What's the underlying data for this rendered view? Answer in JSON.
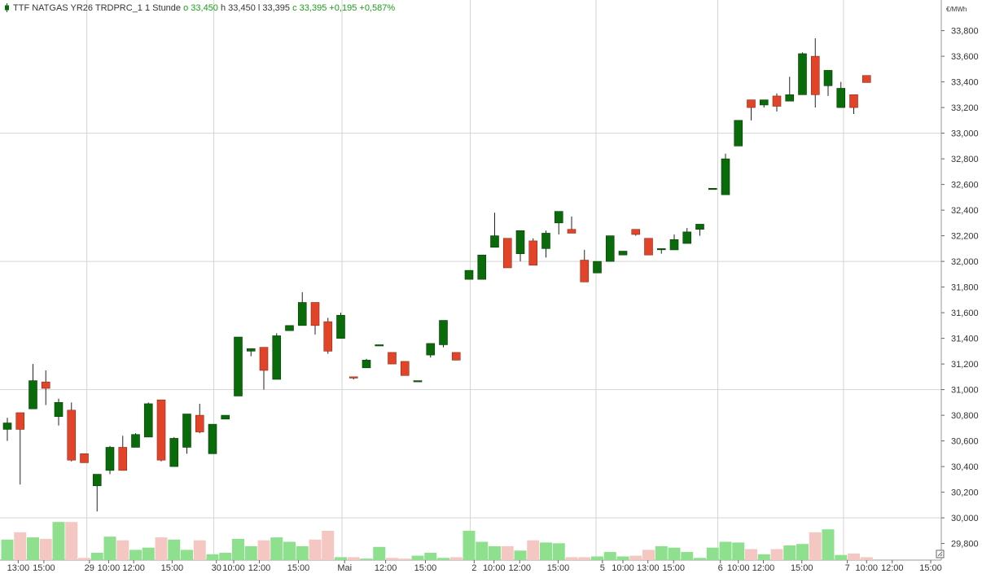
{
  "header": {
    "title": "TTF NATGAS YR26 TRDPRC_1",
    "interval": "1 Stunde",
    "open": "o 33,450",
    "high": "h 33,450",
    "low": "l 33,395",
    "close": "c 33,395",
    "change": "+0,195",
    "change_pct": "+0,587%"
  },
  "unit_label": "€/MWh",
  "colors": {
    "up": "#0a6b0a",
    "down": "#e2442a",
    "vol_up": "#8ee08e",
    "vol_down": "#f5c7c2",
    "grid": "#d4d4d4",
    "axis_text": "#333333"
  },
  "chart_data": {
    "type": "candlestick",
    "ylim": [
      29.7,
      33.9
    ],
    "y_ticks": [
      {
        "v": 29.8,
        "label": "29,800"
      },
      {
        "v": 30.0,
        "label": "30,000"
      },
      {
        "v": 30.2,
        "label": "30,200"
      },
      {
        "v": 30.4,
        "label": "30,400"
      },
      {
        "v": 30.6,
        "label": "30,600"
      },
      {
        "v": 30.8,
        "label": "30,800"
      },
      {
        "v": 31.0,
        "label": "31,000"
      },
      {
        "v": 31.2,
        "label": "31,200"
      },
      {
        "v": 31.4,
        "label": "31,400"
      },
      {
        "v": 31.6,
        "label": "31,600"
      },
      {
        "v": 31.8,
        "label": "31,800"
      },
      {
        "v": 32.0,
        "label": "32,000"
      },
      {
        "v": 32.2,
        "label": "32,200"
      },
      {
        "v": 32.4,
        "label": "32,400"
      },
      {
        "v": 32.6,
        "label": "32,600"
      },
      {
        "v": 32.8,
        "label": "32,800"
      },
      {
        "v": 33.0,
        "label": "33,000"
      },
      {
        "v": 33.2,
        "label": "33,200"
      },
      {
        "v": 33.4,
        "label": "33,400"
      },
      {
        "v": 33.6,
        "label": "33,600"
      },
      {
        "v": 33.8,
        "label": "33,800"
      }
    ],
    "h_gridlines": [
      30.0,
      31.0,
      32.0,
      33.0
    ],
    "x_ticks": [
      {
        "i": 0.85,
        "label": "13:00"
      },
      {
        "i": 2.85,
        "label": "15:00"
      },
      {
        "i": 6.4,
        "label": "29"
      },
      {
        "i": 7.9,
        "label": "10:00"
      },
      {
        "i": 9.85,
        "label": "12:00"
      },
      {
        "i": 12.85,
        "label": "15:00"
      },
      {
        "i": 16.3,
        "label": "30"
      },
      {
        "i": 17.65,
        "label": "10:00"
      },
      {
        "i": 19.65,
        "label": "12:00"
      },
      {
        "i": 22.7,
        "label": "15:00"
      },
      {
        "i": 26.3,
        "label": "Mai"
      },
      {
        "i": 29.5,
        "label": "12:00"
      },
      {
        "i": 32.6,
        "label": "15:00"
      },
      {
        "i": 36.4,
        "label": "2"
      },
      {
        "i": 37.95,
        "label": "10:00"
      },
      {
        "i": 39.95,
        "label": "12:00"
      },
      {
        "i": 42.95,
        "label": "15:00"
      },
      {
        "i": 46.4,
        "label": "5"
      },
      {
        "i": 48.0,
        "label": "10:00"
      },
      {
        "i": 49.95,
        "label": "13:00"
      },
      {
        "i": 51.95,
        "label": "15:00"
      },
      {
        "i": 55.6,
        "label": "6"
      },
      {
        "i": 57.0,
        "label": "10:00"
      },
      {
        "i": 58.95,
        "label": "12:00"
      },
      {
        "i": 61.95,
        "label": "15:00"
      },
      {
        "i": 65.5,
        "label": "7"
      },
      {
        "i": 67.0,
        "label": "10:00"
      },
      {
        "i": 69.0,
        "label": "12:00"
      },
      {
        "i": 72.0,
        "label": "15:00"
      }
    ],
    "v_gridlines": [
      6.2,
      16.1,
      26.1,
      36.1,
      45.9,
      55.4,
      65.2
    ],
    "volume_max": 100,
    "candles": [
      {
        "o": 30.69,
        "h": 30.78,
        "l": 30.6,
        "c": 30.74,
        "v": 28
      },
      {
        "o": 30.82,
        "h": 30.82,
        "l": 30.26,
        "c": 30.69,
        "v": 38
      },
      {
        "o": 30.85,
        "h": 31.2,
        "l": 30.85,
        "c": 31.07,
        "v": 31
      },
      {
        "o": 31.06,
        "h": 31.15,
        "l": 30.88,
        "c": 31.01,
        "v": 29
      },
      {
        "o": 30.79,
        "h": 30.93,
        "l": 30.72,
        "c": 30.9,
        "v": 52
      },
      {
        "o": 30.84,
        "h": 30.9,
        "l": 30.44,
        "c": 30.45,
        "v": 52
      },
      {
        "o": 30.5,
        "h": 30.5,
        "l": 30.43,
        "c": 30.43,
        "v": 3
      },
      {
        "o": 30.25,
        "h": 30.34,
        "l": 30.05,
        "c": 30.34,
        "v": 10
      },
      {
        "o": 30.37,
        "h": 30.56,
        "l": 30.34,
        "c": 30.55,
        "v": 32
      },
      {
        "o": 30.55,
        "h": 30.64,
        "l": 30.37,
        "c": 30.37,
        "v": 27
      },
      {
        "o": 30.55,
        "h": 30.66,
        "l": 30.55,
        "c": 30.65,
        "v": 14
      },
      {
        "o": 30.63,
        "h": 30.9,
        "l": 30.63,
        "c": 30.89,
        "v": 17
      },
      {
        "o": 30.92,
        "h": 30.92,
        "l": 30.44,
        "c": 30.45,
        "v": 31
      },
      {
        "o": 30.4,
        "h": 30.63,
        "l": 30.4,
        "c": 30.62,
        "v": 28
      },
      {
        "o": 30.55,
        "h": 30.8,
        "l": 30.5,
        "c": 30.81,
        "v": 14
      },
      {
        "o": 30.8,
        "h": 30.89,
        "l": 30.66,
        "c": 30.67,
        "v": 27
      },
      {
        "o": 30.5,
        "h": 30.73,
        "l": 30.5,
        "c": 30.73,
        "v": 8
      },
      {
        "o": 30.77,
        "h": 30.8,
        "l": 30.77,
        "c": 30.8,
        "v": 10
      },
      {
        "o": 30.95,
        "h": 31.41,
        "l": 30.95,
        "c": 31.41,
        "v": 29
      },
      {
        "o": 31.3,
        "h": 31.32,
        "l": 31.26,
        "c": 31.32,
        "v": 19
      },
      {
        "o": 31.33,
        "h": 31.33,
        "l": 31.0,
        "c": 31.15,
        "v": 27
      },
      {
        "o": 31.08,
        "h": 31.44,
        "l": 31.08,
        "c": 31.42,
        "v": 31
      },
      {
        "o": 31.46,
        "h": 31.5,
        "l": 31.46,
        "c": 31.5,
        "v": 25
      },
      {
        "o": 31.5,
        "h": 31.76,
        "l": 31.5,
        "c": 31.68,
        "v": 19
      },
      {
        "o": 31.68,
        "h": 31.68,
        "l": 31.43,
        "c": 31.5,
        "v": 28
      },
      {
        "o": 31.53,
        "h": 31.56,
        "l": 31.28,
        "c": 31.3,
        "v": 40
      },
      {
        "o": 31.4,
        "h": 31.6,
        "l": 31.4,
        "c": 31.58,
        "v": 4
      },
      {
        "o": 31.1,
        "h": 31.1,
        "l": 31.08,
        "c": 31.09,
        "v": 4
      },
      {
        "o": 31.17,
        "h": 31.24,
        "l": 31.17,
        "c": 31.23,
        "v": 2
      },
      {
        "o": 31.35,
        "h": 31.35,
        "l": 31.34,
        "c": 31.35,
        "v": 18
      },
      {
        "o": 31.29,
        "h": 31.29,
        "l": 31.2,
        "c": 31.2,
        "v": 3
      },
      {
        "o": 31.22,
        "h": 31.22,
        "l": 31.11,
        "c": 31.11,
        "v": 2
      },
      {
        "o": 31.07,
        "h": 31.07,
        "l": 31.06,
        "c": 31.07,
        "v": 6
      },
      {
        "o": 31.27,
        "h": 31.36,
        "l": 31.25,
        "c": 31.36,
        "v": 10
      },
      {
        "o": 31.35,
        "h": 31.54,
        "l": 31.33,
        "c": 31.54,
        "v": 3
      },
      {
        "o": 31.29,
        "h": 31.29,
        "l": 31.23,
        "c": 31.23,
        "v": 4
      },
      {
        "o": 31.86,
        "h": 31.93,
        "l": 31.86,
        "c": 31.93,
        "v": 40
      },
      {
        "o": 31.86,
        "h": 32.05,
        "l": 31.86,
        "c": 32.05,
        "v": 25
      },
      {
        "o": 32.11,
        "h": 32.38,
        "l": 32.11,
        "c": 32.2,
        "v": 19
      },
      {
        "o": 32.18,
        "h": 32.18,
        "l": 31.95,
        "c": 31.95,
        "v": 19
      },
      {
        "o": 32.06,
        "h": 32.24,
        "l": 32.0,
        "c": 32.24,
        "v": 13
      },
      {
        "o": 32.16,
        "h": 32.18,
        "l": 31.97,
        "c": 31.97,
        "v": 27
      },
      {
        "o": 32.1,
        "h": 32.24,
        "l": 32.03,
        "c": 32.22,
        "v": 24
      },
      {
        "o": 32.3,
        "h": 32.39,
        "l": 32.21,
        "c": 32.39,
        "v": 23
      },
      {
        "o": 32.25,
        "h": 32.35,
        "l": 32.22,
        "c": 32.22,
        "v": 4
      },
      {
        "o": 32.01,
        "h": 32.09,
        "l": 31.84,
        "c": 31.84,
        "v": 4
      },
      {
        "o": 31.91,
        "h": 32.0,
        "l": 31.91,
        "c": 32.0,
        "v": 5
      },
      {
        "o": 32.0,
        "h": 32.2,
        "l": 32.0,
        "c": 32.2,
        "v": 11
      },
      {
        "o": 32.05,
        "h": 32.08,
        "l": 32.05,
        "c": 32.08,
        "v": 5
      },
      {
        "o": 32.25,
        "h": 32.25,
        "l": 32.2,
        "c": 32.21,
        "v": 6
      },
      {
        "o": 32.18,
        "h": 32.18,
        "l": 32.05,
        "c": 32.05,
        "v": 14
      },
      {
        "o": 32.1,
        "h": 32.1,
        "l": 32.06,
        "c": 32.1,
        "v": 19
      },
      {
        "o": 32.09,
        "h": 32.21,
        "l": 32.09,
        "c": 32.17,
        "v": 17
      },
      {
        "o": 32.14,
        "h": 32.26,
        "l": 32.14,
        "c": 32.23,
        "v": 11
      },
      {
        "o": 32.25,
        "h": 32.29,
        "l": 32.2,
        "c": 32.29,
        "v": 3
      },
      {
        "o": 32.57,
        "h": 32.57,
        "l": 32.56,
        "c": 32.57,
        "v": 17
      },
      {
        "o": 32.52,
        "h": 32.84,
        "l": 32.52,
        "c": 32.8,
        "v": 25
      },
      {
        "o": 32.9,
        "h": 33.1,
        "l": 32.9,
        "c": 33.1,
        "v": 24
      },
      {
        "o": 33.26,
        "h": 33.26,
        "l": 33.1,
        "c": 33.2,
        "v": 15
      },
      {
        "o": 33.22,
        "h": 33.26,
        "l": 33.2,
        "c": 33.26,
        "v": 8
      },
      {
        "o": 33.29,
        "h": 33.31,
        "l": 33.17,
        "c": 33.21,
        "v": 15
      },
      {
        "o": 33.25,
        "h": 33.44,
        "l": 33.25,
        "c": 33.3,
        "v": 20
      },
      {
        "o": 33.3,
        "h": 33.63,
        "l": 33.3,
        "c": 33.62,
        "v": 22
      },
      {
        "o": 33.6,
        "h": 33.74,
        "l": 33.2,
        "c": 33.3,
        "v": 38
      },
      {
        "o": 33.37,
        "h": 33.49,
        "l": 33.29,
        "c": 33.49,
        "v": 42
      },
      {
        "o": 33.2,
        "h": 33.4,
        "l": 33.2,
        "c": 33.35,
        "v": 7
      },
      {
        "o": 33.3,
        "h": 33.3,
        "l": 33.15,
        "c": 33.2,
        "v": 9
      },
      {
        "o": 33.45,
        "h": 33.45,
        "l": 33.395,
        "c": 33.395,
        "v": 4
      }
    ]
  }
}
